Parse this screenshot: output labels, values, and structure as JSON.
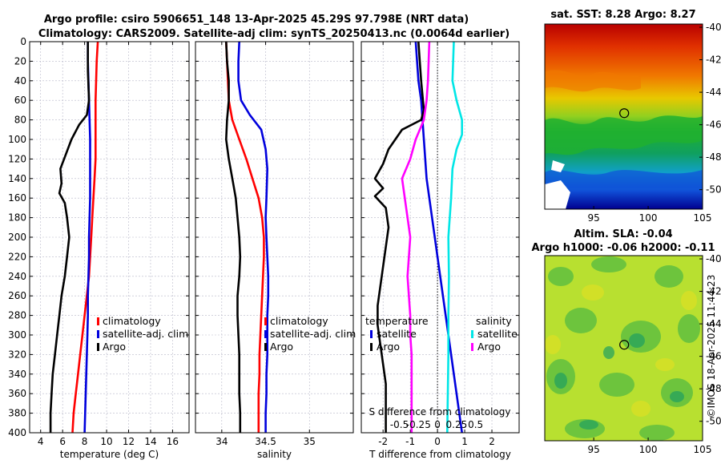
{
  "titles": {
    "line1": "Argo profile: csiro 5906651_148 13-Apr-2025 45.29S 97.798E (NRT data)",
    "line2": "Climatology: CARS2009. Satellite-adj clim: synTS_20250413.nc (0.0064d earlier)"
  },
  "colors": {
    "argo": "#000000",
    "climatology": "#ff0000",
    "satellite": "#0000dd",
    "salinity_climatology": "#ff00ff",
    "salinity_satellite": "#00e6e6"
  },
  "depth_axis": {
    "min": 0,
    "max": 400,
    "ticks": [
      "0",
      "20",
      "40",
      "60",
      "80",
      "100",
      "120",
      "140",
      "160",
      "180",
      "200",
      "220",
      "240",
      "260",
      "280",
      "300",
      "320",
      "340",
      "360",
      "380",
      "400"
    ]
  },
  "chart_data": [
    {
      "type": "line",
      "id": "temperature",
      "xlabel": "temperature (deg C)",
      "xlim": [
        3,
        17.5
      ],
      "xticks": [
        4,
        6,
        8,
        10,
        12,
        14,
        16
      ],
      "legend": [
        "climatology",
        "satellite-adj. clim",
        "Argo"
      ],
      "series": [
        {
          "name": "climatology",
          "points": [
            [
              9.2,
              0
            ],
            [
              9.1,
              20
            ],
            [
              9.05,
              40
            ],
            [
              9.0,
              60
            ],
            [
              9.0,
              80
            ],
            [
              9.0,
              100
            ],
            [
              9.0,
              120
            ],
            [
              8.9,
              140
            ],
            [
              8.8,
              160
            ],
            [
              8.7,
              180
            ],
            [
              8.6,
              200
            ],
            [
              8.5,
              220
            ],
            [
              8.4,
              240
            ],
            [
              8.2,
              260
            ],
            [
              8.0,
              280
            ],
            [
              7.8,
              300
            ],
            [
              7.6,
              320
            ],
            [
              7.4,
              340
            ],
            [
              7.2,
              360
            ],
            [
              7.0,
              380
            ],
            [
              6.9,
              400
            ]
          ]
        },
        {
          "name": "satellite-adj. clim",
          "points": [
            [
              8.3,
              0
            ],
            [
              8.3,
              20
            ],
            [
              8.35,
              40
            ],
            [
              8.4,
              60
            ],
            [
              8.45,
              80
            ],
            [
              8.5,
              100
            ],
            [
              8.5,
              120
            ],
            [
              8.5,
              140
            ],
            [
              8.5,
              160
            ],
            [
              8.45,
              180
            ],
            [
              8.4,
              200
            ],
            [
              8.4,
              220
            ],
            [
              8.35,
              240
            ],
            [
              8.3,
              260
            ],
            [
              8.3,
              280
            ],
            [
              8.25,
              300
            ],
            [
              8.2,
              320
            ],
            [
              8.15,
              340
            ],
            [
              8.1,
              360
            ],
            [
              8.05,
              380
            ],
            [
              8.0,
              400
            ]
          ]
        },
        {
          "name": "Argo",
          "points": [
            [
              8.3,
              0
            ],
            [
              8.3,
              30
            ],
            [
              8.4,
              60
            ],
            [
              8.2,
              75
            ],
            [
              7.5,
              85
            ],
            [
              6.8,
              100
            ],
            [
              6.3,
              115
            ],
            [
              5.8,
              130
            ],
            [
              5.9,
              145
            ],
            [
              5.7,
              155
            ],
            [
              6.2,
              165
            ],
            [
              6.4,
              180
            ],
            [
              6.6,
              200
            ],
            [
              6.4,
              220
            ],
            [
              6.2,
              240
            ],
            [
              5.9,
              260
            ],
            [
              5.7,
              280
            ],
            [
              5.5,
              300
            ],
            [
              5.3,
              320
            ],
            [
              5.1,
              340
            ],
            [
              5.0,
              360
            ],
            [
              4.9,
              380
            ],
            [
              4.9,
              400
            ]
          ]
        }
      ]
    },
    {
      "type": "line",
      "id": "salinity",
      "xlabel": "salinity",
      "xlim": [
        33.7,
        35.5
      ],
      "xticks": [
        34,
        34.5,
        35
      ],
      "legend": [
        "climatology",
        "satellite-adj. clim",
        "Argo"
      ],
      "series": [
        {
          "name": "climatology",
          "points": [
            [
              34.05,
              0
            ],
            [
              34.06,
              20
            ],
            [
              34.07,
              40
            ],
            [
              34.08,
              60
            ],
            [
              34.12,
              80
            ],
            [
              34.2,
              100
            ],
            [
              34.28,
              120
            ],
            [
              34.35,
              140
            ],
            [
              34.42,
              160
            ],
            [
              34.46,
              180
            ],
            [
              34.48,
              200
            ],
            [
              34.48,
              220
            ],
            [
              34.47,
              240
            ],
            [
              34.46,
              260
            ],
            [
              34.45,
              280
            ],
            [
              34.44,
              300
            ],
            [
              34.43,
              320
            ],
            [
              34.43,
              340
            ],
            [
              34.42,
              360
            ],
            [
              34.42,
              380
            ],
            [
              34.42,
              400
            ]
          ]
        },
        {
          "name": "satellite-adj. clim",
          "points": [
            [
              34.2,
              0
            ],
            [
              34.19,
              20
            ],
            [
              34.19,
              40
            ],
            [
              34.22,
              60
            ],
            [
              34.32,
              75
            ],
            [
              34.45,
              90
            ],
            [
              34.5,
              110
            ],
            [
              34.52,
              130
            ],
            [
              34.51,
              160
            ],
            [
              34.5,
              180
            ],
            [
              34.51,
              200
            ],
            [
              34.52,
              220
            ],
            [
              34.53,
              240
            ],
            [
              34.53,
              260
            ],
            [
              34.52,
              280
            ],
            [
              34.52,
              300
            ],
            [
              34.52,
              320
            ],
            [
              34.51,
              340
            ],
            [
              34.51,
              360
            ],
            [
              34.5,
              380
            ],
            [
              34.5,
              400
            ]
          ]
        },
        {
          "name": "Argo",
          "points": [
            [
              34.05,
              0
            ],
            [
              34.06,
              20
            ],
            [
              34.08,
              40
            ],
            [
              34.08,
              60
            ],
            [
              34.06,
              80
            ],
            [
              34.05,
              100
            ],
            [
              34.08,
              120
            ],
            [
              34.12,
              140
            ],
            [
              34.16,
              160
            ],
            [
              34.18,
              180
            ],
            [
              34.2,
              200
            ],
            [
              34.21,
              220
            ],
            [
              34.2,
              240
            ],
            [
              34.18,
              260
            ],
            [
              34.18,
              280
            ],
            [
              34.19,
              300
            ],
            [
              34.2,
              320
            ],
            [
              34.2,
              340
            ],
            [
              34.2,
              360
            ],
            [
              34.21,
              380
            ],
            [
              34.21,
              400
            ]
          ]
        }
      ]
    },
    {
      "type": "line",
      "id": "difference",
      "xlabel": "T difference from climatology",
      "xlim": [
        -2.8,
        3
      ],
      "xticks": [
        -2,
        -1,
        0,
        1,
        2
      ],
      "secondary_axis_label": "S difference from climatology",
      "secondary_ticks": [
        "-0.5",
        "-0.25",
        "0",
        "0.25",
        "0.5"
      ],
      "legend": {
        "temperature_title": "temperature",
        "salinity_title": "salinity",
        "entries": [
          "satellite",
          "Argo"
        ]
      },
      "series": [
        {
          "name": "temperature satellite",
          "points": [
            [
              -0.8,
              0
            ],
            [
              -0.75,
              20
            ],
            [
              -0.7,
              40
            ],
            [
              -0.6,
              60
            ],
            [
              -0.55,
              80
            ],
            [
              -0.5,
              100
            ],
            [
              -0.45,
              120
            ],
            [
              -0.4,
              140
            ],
            [
              -0.3,
              160
            ],
            [
              -0.2,
              180
            ],
            [
              -0.1,
              200
            ],
            [
              0.0,
              220
            ],
            [
              0.1,
              240
            ],
            [
              0.2,
              260
            ],
            [
              0.3,
              280
            ],
            [
              0.4,
              300
            ],
            [
              0.5,
              320
            ],
            [
              0.6,
              340
            ],
            [
              0.7,
              360
            ],
            [
              0.8,
              380
            ],
            [
              0.9,
              400
            ]
          ]
        },
        {
          "name": "temperature Argo",
          "points": [
            [
              -0.7,
              0
            ],
            [
              -0.6,
              40
            ],
            [
              -0.5,
              70
            ],
            [
              -0.6,
              80
            ],
            [
              -1.3,
              90
            ],
            [
              -1.8,
              110
            ],
            [
              -2.0,
              125
            ],
            [
              -2.3,
              140
            ],
            [
              -2.0,
              150
            ],
            [
              -2.3,
              158
            ],
            [
              -1.9,
              170
            ],
            [
              -1.8,
              190
            ],
            [
              -1.9,
              210
            ],
            [
              -2.0,
              230
            ],
            [
              -2.1,
              250
            ],
            [
              -2.2,
              270
            ],
            [
              -2.2,
              290
            ],
            [
              -2.1,
              310
            ],
            [
              -2.0,
              330
            ],
            [
              -1.9,
              350
            ],
            [
              -1.9,
              370
            ],
            [
              -1.9,
              400
            ]
          ]
        },
        {
          "name": "salinity satellite",
          "points": [
            [
              0.6,
              0
            ],
            [
              0.55,
              40
            ],
            [
              0.7,
              60
            ],
            [
              0.9,
              80
            ],
            [
              0.9,
              95
            ],
            [
              0.7,
              110
            ],
            [
              0.55,
              130
            ],
            [
              0.5,
              160
            ],
            [
              0.4,
              200
            ],
            [
              0.42,
              240
            ],
            [
              0.4,
              280
            ],
            [
              0.4,
              320
            ],
            [
              0.38,
              360
            ],
            [
              0.36,
              400
            ]
          ]
        },
        {
          "name": "salinity Argo",
          "points": [
            [
              -0.3,
              0
            ],
            [
              -0.35,
              40
            ],
            [
              -0.4,
              60
            ],
            [
              -0.5,
              80
            ],
            [
              -0.8,
              100
            ],
            [
              -1.0,
              120
            ],
            [
              -1.3,
              140
            ],
            [
              -1.2,
              160
            ],
            [
              -1.1,
              180
            ],
            [
              -1.0,
              200
            ],
            [
              -1.05,
              220
            ],
            [
              -1.1,
              240
            ],
            [
              -1.05,
              260
            ],
            [
              -1.0,
              280
            ],
            [
              -1.0,
              300
            ],
            [
              -0.95,
              320
            ],
            [
              -0.95,
              340
            ],
            [
              -0.95,
              360
            ],
            [
              -0.95,
              380
            ],
            [
              -0.95,
              400
            ]
          ]
        }
      ]
    },
    {
      "type": "heatmap",
      "id": "sst_map",
      "title": "sat. SST: 8.28 Argo: 8.27",
      "xticks": [
        95,
        100,
        105
      ],
      "yticks": [
        -40,
        -42,
        -44,
        -46,
        -48,
        -50
      ],
      "xlim": [
        90.5,
        105
      ],
      "ylim": [
        -51.2,
        -39.8
      ],
      "marker": {
        "lon": 97.8,
        "lat": -45.29
      }
    },
    {
      "type": "heatmap",
      "id": "sla_map",
      "title_line1": "Altim. SLA: -0.04",
      "title_line2": "Argo h1000: -0.06 h2000: -0.11",
      "xticks": [
        95,
        100,
        105
      ],
      "yticks": [
        -40,
        -42,
        -44,
        -46,
        -48,
        -50
      ],
      "xlim": [
        90.5,
        105
      ],
      "ylim": [
        -51.2,
        -39.8
      ],
      "marker": {
        "lon": 97.8,
        "lat": -45.29
      }
    }
  ],
  "watermark": "©IMOS 18-Apr-2025 11:44:23"
}
